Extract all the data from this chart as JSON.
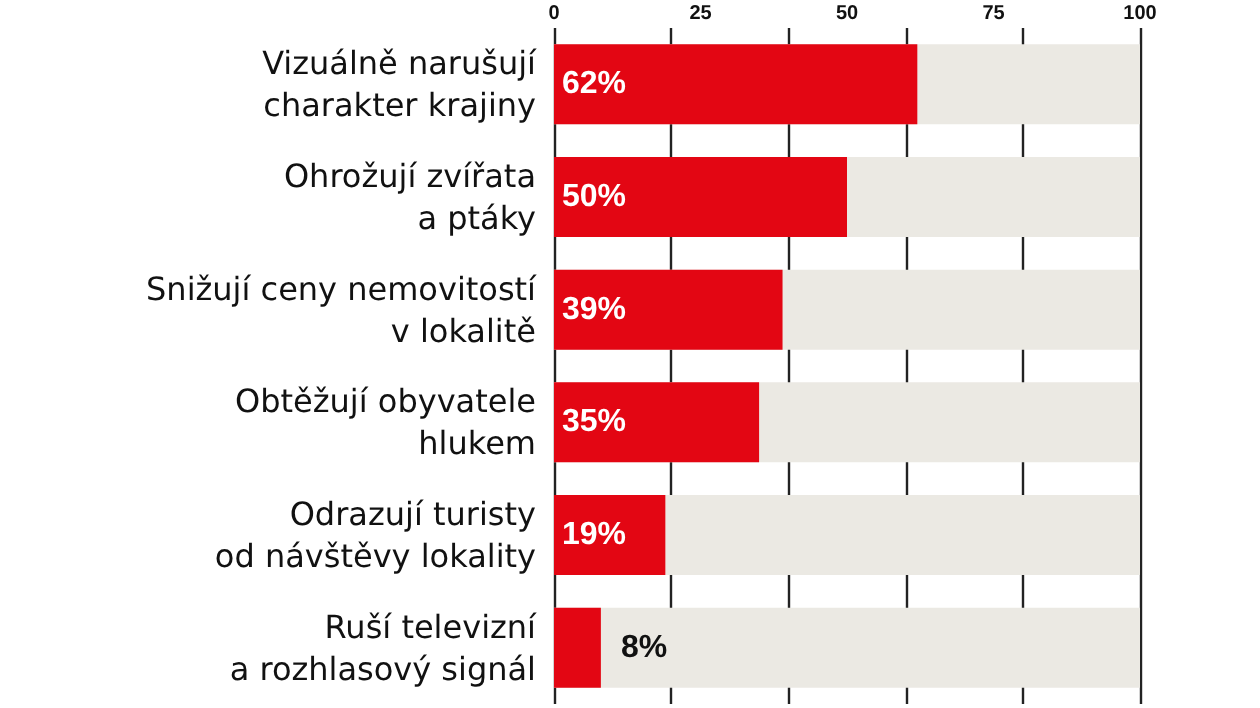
{
  "chart_data": {
    "type": "bar",
    "orientation": "horizontal",
    "categories": [
      "Vizuálně narušují\ncharakter krajiny",
      "Ohrožují zvířata\na ptáky",
      "Snižují ceny nemovitostí\nv lokalitě",
      "Obtěžují obyvatele\nhlukem",
      "Odrazují turisty\nod návštěvy lokality",
      "Ruší televizní\na rozhlasový signál"
    ],
    "values": [
      62,
      50,
      39,
      35,
      19,
      8
    ],
    "value_labels": [
      "62%",
      "50%",
      "39%",
      "35%",
      "19%",
      "8%"
    ],
    "color": "#e30613",
    "xlim": [
      0,
      100
    ],
    "xticks": [
      0,
      25,
      50,
      75,
      100
    ],
    "grid": "x"
  }
}
